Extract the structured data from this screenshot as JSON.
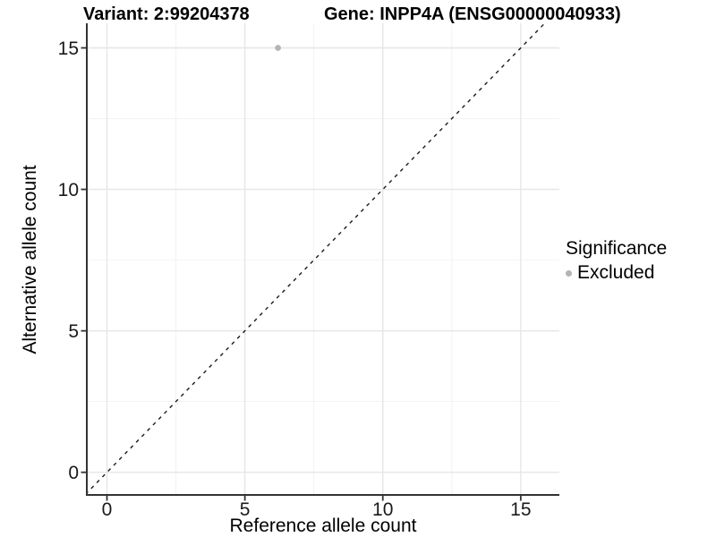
{
  "header": {
    "variant_title": "Variant: 2:99204378",
    "gene_title": "Gene: INPP4A (ENSG00000040933)"
  },
  "legend": {
    "title": "Significance",
    "items": [
      {
        "label": "Excluded",
        "color": "#b4b4b4"
      }
    ]
  },
  "chart_data": {
    "type": "scatter",
    "title": "Variant: 2:99204378   Gene: INPP4A (ENSG00000040933)",
    "xlabel": "Reference allele count",
    "ylabel": "Alternative allele count",
    "xlim": [
      -0.73,
      16.4
    ],
    "ylim": [
      -0.8,
      15.87
    ],
    "x_ticks": [
      0,
      5,
      10,
      15
    ],
    "y_ticks": [
      0,
      5,
      10,
      15
    ],
    "x_minor_ticks": [
      2.5,
      7.5,
      12.5
    ],
    "y_minor_ticks": [
      2.5,
      7.5,
      12.5
    ],
    "grid": "major and minor gridlines, white background",
    "legend_position": "right",
    "series": [
      {
        "name": "Excluded",
        "color": "#b4b4b4",
        "points": [
          {
            "x": 6.2,
            "y": 15
          }
        ]
      }
    ],
    "reference_line": {
      "type": "identity y=x",
      "style": "dashed",
      "color": "#1a1a1a"
    }
  },
  "style": {
    "background": "#ffffff",
    "grid_major_color": "#e6e6e6",
    "grid_minor_color": "#f2f2f2",
    "axis_color": "#333333",
    "tick_label_color": "#1a1a1a",
    "point_color": "#b4b4b4",
    "dash_color": "#1a1a1a"
  }
}
